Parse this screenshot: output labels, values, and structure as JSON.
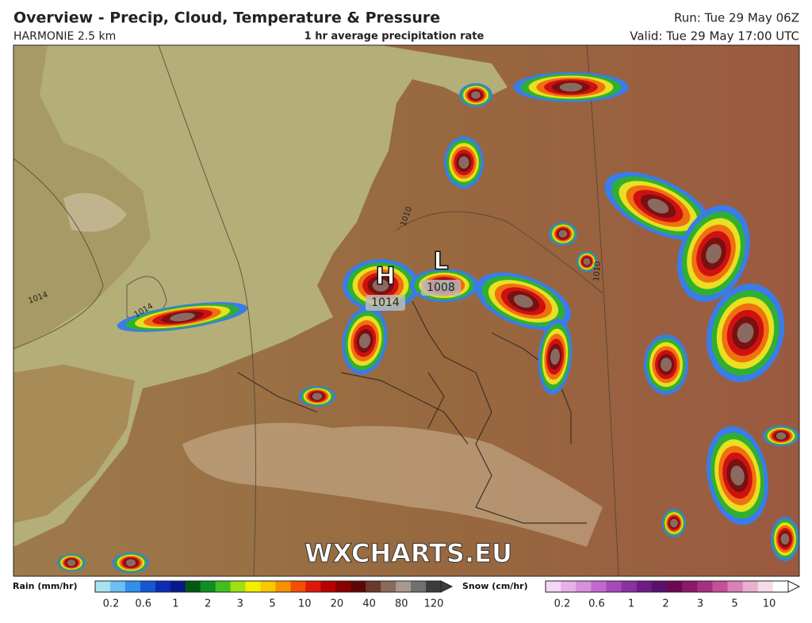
{
  "header": {
    "title": "Overview - Precip, Cloud, Temperature & Pressure",
    "model": "HARMONIE 2.5 km",
    "field": "1 hr average precipitation rate",
    "run": "Run: Tue 29 May 06Z",
    "valid": "Valid: Tue 29 May 17:00 UTC"
  },
  "map": {
    "pressure_centers": [
      {
        "symbol": "H",
        "value": 1014
      },
      {
        "symbol": "L",
        "value": 1008
      }
    ],
    "isobar_labels": [
      1010,
      1014,
      1014,
      1010
    ],
    "watermark": "WXCHARTS.EU"
  },
  "legend": {
    "rain": {
      "label": "Rain (mm/hr)",
      "ticks": [
        0.2,
        0.6,
        1,
        2,
        3,
        5,
        10,
        20,
        40,
        80,
        120
      ],
      "colors": [
        "#a8e4f0",
        "#6cc0f4",
        "#3090ec",
        "#1458d8",
        "#0c2cb4",
        "#08188c",
        "#005a10",
        "#0c9020",
        "#40c020",
        "#a0e010",
        "#f0f000",
        "#f8c800",
        "#f89000",
        "#f05000",
        "#e01808",
        "#b80000",
        "#880000",
        "#5c0808",
        "#6c3a2a",
        "#8a6a5a",
        "#a89890",
        "#707070",
        "#3c3c3c"
      ]
    },
    "snow": {
      "label": "Snow (cm/hr)",
      "ticks": [
        0.2,
        0.6,
        1,
        2,
        3,
        5,
        10
      ],
      "colors": [
        "#f4d8f4",
        "#e8b0e8",
        "#d890dc",
        "#c468d0",
        "#a848bc",
        "#8c30a4",
        "#701c88",
        "#58106c",
        "#6c0850",
        "#8c1868",
        "#a83080",
        "#c45098",
        "#dc80b8",
        "#eab0d0",
        "#f6dcea",
        "#ffffff"
      ]
    }
  }
}
